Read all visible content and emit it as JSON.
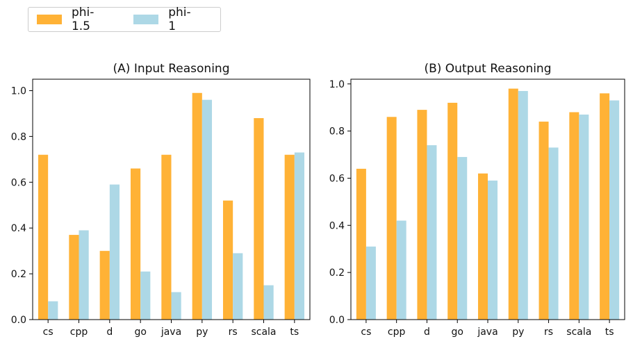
{
  "legend": {
    "series1": "phi-1.5",
    "series2": "phi-1"
  },
  "colors": {
    "series1": "#FFB236",
    "series2": "#ADD8E6"
  },
  "chart_data": [
    {
      "type": "bar",
      "title": "(A) Input Reasoning",
      "categories": [
        "cs",
        "cpp",
        "d",
        "go",
        "java",
        "py",
        "rs",
        "scala",
        "ts"
      ],
      "series": [
        {
          "name": "phi-1.5",
          "values": [
            0.72,
            0.37,
            0.3,
            0.66,
            0.72,
            0.99,
            0.52,
            0.88,
            0.72
          ]
        },
        {
          "name": "phi-1",
          "values": [
            0.08,
            0.39,
            0.59,
            0.21,
            0.12,
            0.96,
            0.29,
            0.15,
            0.73
          ]
        }
      ],
      "ylim": [
        0,
        1.05
      ],
      "yticks": [
        "0.0",
        "0.2",
        "0.4",
        "0.6",
        "0.8",
        "1.0"
      ],
      "xlabel": "",
      "ylabel": "",
      "grid": false
    },
    {
      "type": "bar",
      "title": "(B) Output Reasoning",
      "categories": [
        "cs",
        "cpp",
        "d",
        "go",
        "java",
        "py",
        "rs",
        "scala",
        "ts"
      ],
      "series": [
        {
          "name": "phi-1.5",
          "values": [
            0.64,
            0.86,
            0.89,
            0.92,
            0.62,
            0.98,
            0.84,
            0.88,
            0.96
          ]
        },
        {
          "name": "phi-1",
          "values": [
            0.31,
            0.42,
            0.74,
            0.69,
            0.59,
            0.97,
            0.73,
            0.87,
            0.93
          ]
        }
      ],
      "ylim": [
        0,
        1.02
      ],
      "yticks": [
        "0.0",
        "0.2",
        "0.4",
        "0.6",
        "0.8",
        "1.0"
      ],
      "xlabel": "",
      "ylabel": "",
      "grid": false
    }
  ]
}
